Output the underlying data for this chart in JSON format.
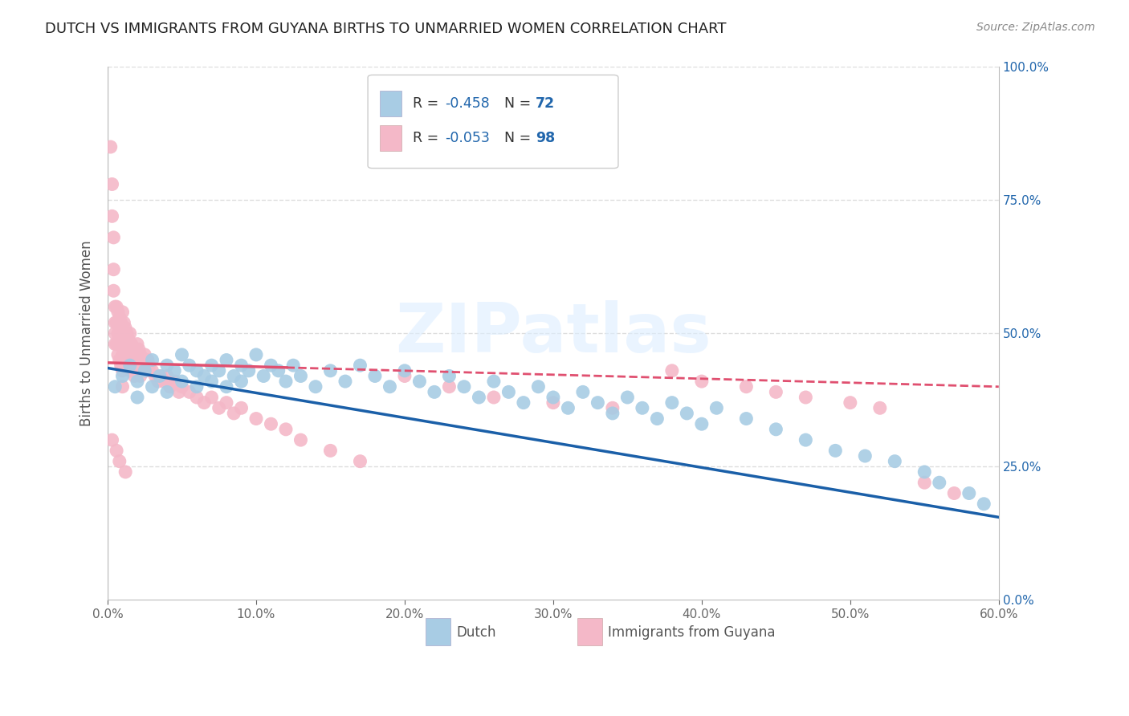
{
  "title": "DUTCH VS IMMIGRANTS FROM GUYANA BIRTHS TO UNMARRIED WOMEN CORRELATION CHART",
  "source": "Source: ZipAtlas.com",
  "ylabel": "Births to Unmarried Women",
  "xmin": 0.0,
  "xmax": 0.6,
  "ymin": 0.0,
  "ymax": 1.0,
  "dutch_color": "#a8cce4",
  "guyana_color": "#f4b8c8",
  "dutch_line_color": "#1a5fa8",
  "guyana_line_color": "#e05070",
  "dutch_R": -0.458,
  "dutch_N": 72,
  "guyana_R": -0.053,
  "guyana_N": 98,
  "watermark": "ZIPatlas",
  "r_value_color": "#2166ac",
  "n_value_color": "#2166ac",
  "dutch_scatter_x": [
    0.005,
    0.01,
    0.015,
    0.02,
    0.02,
    0.025,
    0.03,
    0.03,
    0.035,
    0.04,
    0.04,
    0.045,
    0.05,
    0.05,
    0.055,
    0.06,
    0.06,
    0.065,
    0.07,
    0.07,
    0.075,
    0.08,
    0.08,
    0.085,
    0.09,
    0.09,
    0.095,
    0.1,
    0.105,
    0.11,
    0.115,
    0.12,
    0.125,
    0.13,
    0.14,
    0.15,
    0.16,
    0.17,
    0.18,
    0.19,
    0.2,
    0.21,
    0.22,
    0.23,
    0.24,
    0.25,
    0.26,
    0.27,
    0.28,
    0.29,
    0.3,
    0.31,
    0.32,
    0.33,
    0.34,
    0.35,
    0.36,
    0.37,
    0.38,
    0.39,
    0.4,
    0.41,
    0.43,
    0.45,
    0.47,
    0.49,
    0.51,
    0.53,
    0.55,
    0.56,
    0.58,
    0.59
  ],
  "dutch_scatter_y": [
    0.4,
    0.42,
    0.44,
    0.41,
    0.38,
    0.43,
    0.45,
    0.4,
    0.42,
    0.44,
    0.39,
    0.43,
    0.46,
    0.41,
    0.44,
    0.43,
    0.4,
    0.42,
    0.44,
    0.41,
    0.43,
    0.45,
    0.4,
    0.42,
    0.44,
    0.41,
    0.43,
    0.46,
    0.42,
    0.44,
    0.43,
    0.41,
    0.44,
    0.42,
    0.4,
    0.43,
    0.41,
    0.44,
    0.42,
    0.4,
    0.43,
    0.41,
    0.39,
    0.42,
    0.4,
    0.38,
    0.41,
    0.39,
    0.37,
    0.4,
    0.38,
    0.36,
    0.39,
    0.37,
    0.35,
    0.38,
    0.36,
    0.34,
    0.37,
    0.35,
    0.33,
    0.36,
    0.34,
    0.32,
    0.3,
    0.28,
    0.27,
    0.26,
    0.24,
    0.22,
    0.2,
    0.18
  ],
  "guyana_scatter_x": [
    0.002,
    0.003,
    0.003,
    0.004,
    0.004,
    0.004,
    0.005,
    0.005,
    0.005,
    0.005,
    0.006,
    0.006,
    0.006,
    0.007,
    0.007,
    0.007,
    0.008,
    0.008,
    0.008,
    0.009,
    0.009,
    0.009,
    0.01,
    0.01,
    0.01,
    0.01,
    0.01,
    0.011,
    0.011,
    0.012,
    0.012,
    0.013,
    0.013,
    0.014,
    0.014,
    0.015,
    0.015,
    0.015,
    0.016,
    0.016,
    0.017,
    0.017,
    0.018,
    0.018,
    0.019,
    0.02,
    0.02,
    0.021,
    0.022,
    0.022,
    0.023,
    0.024,
    0.025,
    0.026,
    0.027,
    0.028,
    0.03,
    0.032,
    0.034,
    0.036,
    0.038,
    0.04,
    0.042,
    0.045,
    0.048,
    0.05,
    0.055,
    0.06,
    0.065,
    0.07,
    0.075,
    0.08,
    0.085,
    0.09,
    0.1,
    0.11,
    0.12,
    0.13,
    0.15,
    0.17,
    0.2,
    0.23,
    0.26,
    0.3,
    0.34,
    0.38,
    0.4,
    0.43,
    0.45,
    0.47,
    0.5,
    0.52,
    0.55,
    0.57,
    0.003,
    0.006,
    0.008,
    0.012
  ],
  "guyana_scatter_y": [
    0.85,
    0.78,
    0.72,
    0.68,
    0.62,
    0.58,
    0.55,
    0.52,
    0.5,
    0.48,
    0.55,
    0.52,
    0.48,
    0.54,
    0.5,
    0.46,
    0.53,
    0.49,
    0.45,
    0.52,
    0.48,
    0.44,
    0.54,
    0.5,
    0.46,
    0.43,
    0.4,
    0.52,
    0.48,
    0.51,
    0.47,
    0.5,
    0.46,
    0.49,
    0.45,
    0.5,
    0.47,
    0.43,
    0.48,
    0.44,
    0.47,
    0.43,
    0.46,
    0.42,
    0.45,
    0.48,
    0.44,
    0.47,
    0.46,
    0.42,
    0.45,
    0.44,
    0.46,
    0.43,
    0.45,
    0.44,
    0.43,
    0.42,
    0.41,
    0.42,
    0.41,
    0.42,
    0.4,
    0.41,
    0.39,
    0.4,
    0.39,
    0.38,
    0.37,
    0.38,
    0.36,
    0.37,
    0.35,
    0.36,
    0.34,
    0.33,
    0.32,
    0.3,
    0.28,
    0.26,
    0.42,
    0.4,
    0.38,
    0.37,
    0.36,
    0.43,
    0.41,
    0.4,
    0.39,
    0.38,
    0.37,
    0.36,
    0.22,
    0.2,
    0.3,
    0.28,
    0.26,
    0.24
  ]
}
